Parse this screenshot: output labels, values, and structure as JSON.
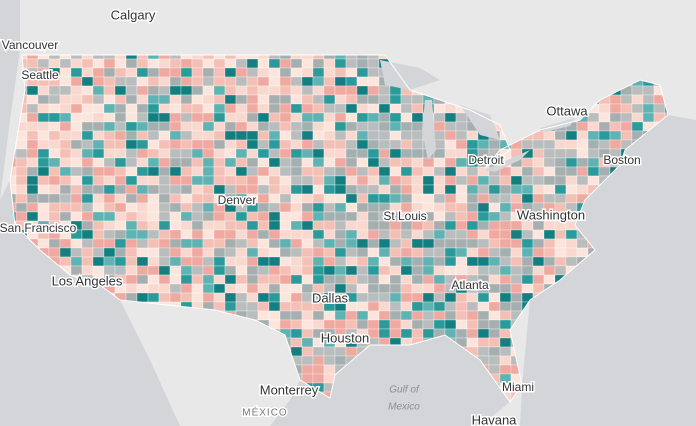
{
  "labels": {
    "calgary": "Calgary",
    "vancouver": "Vancouver",
    "seattle": "Seattle",
    "ottawa": "Ottawa",
    "detroit": "Detroit",
    "boston": "Boston",
    "denver": "Denver",
    "st_louis": "St Louis",
    "washington": "Washington",
    "san_francisco": "San Francisco",
    "los_angeles": "Los Angeles",
    "dallas": "Dallas",
    "atlanta": "Atlanta",
    "houston": "Houston",
    "monterrey": "Monterrey",
    "miami": "Miami",
    "mexico": "MÉXICO",
    "gulf_1": "Gulf of",
    "gulf_2": "Mexico",
    "havana": "Havana"
  }
}
